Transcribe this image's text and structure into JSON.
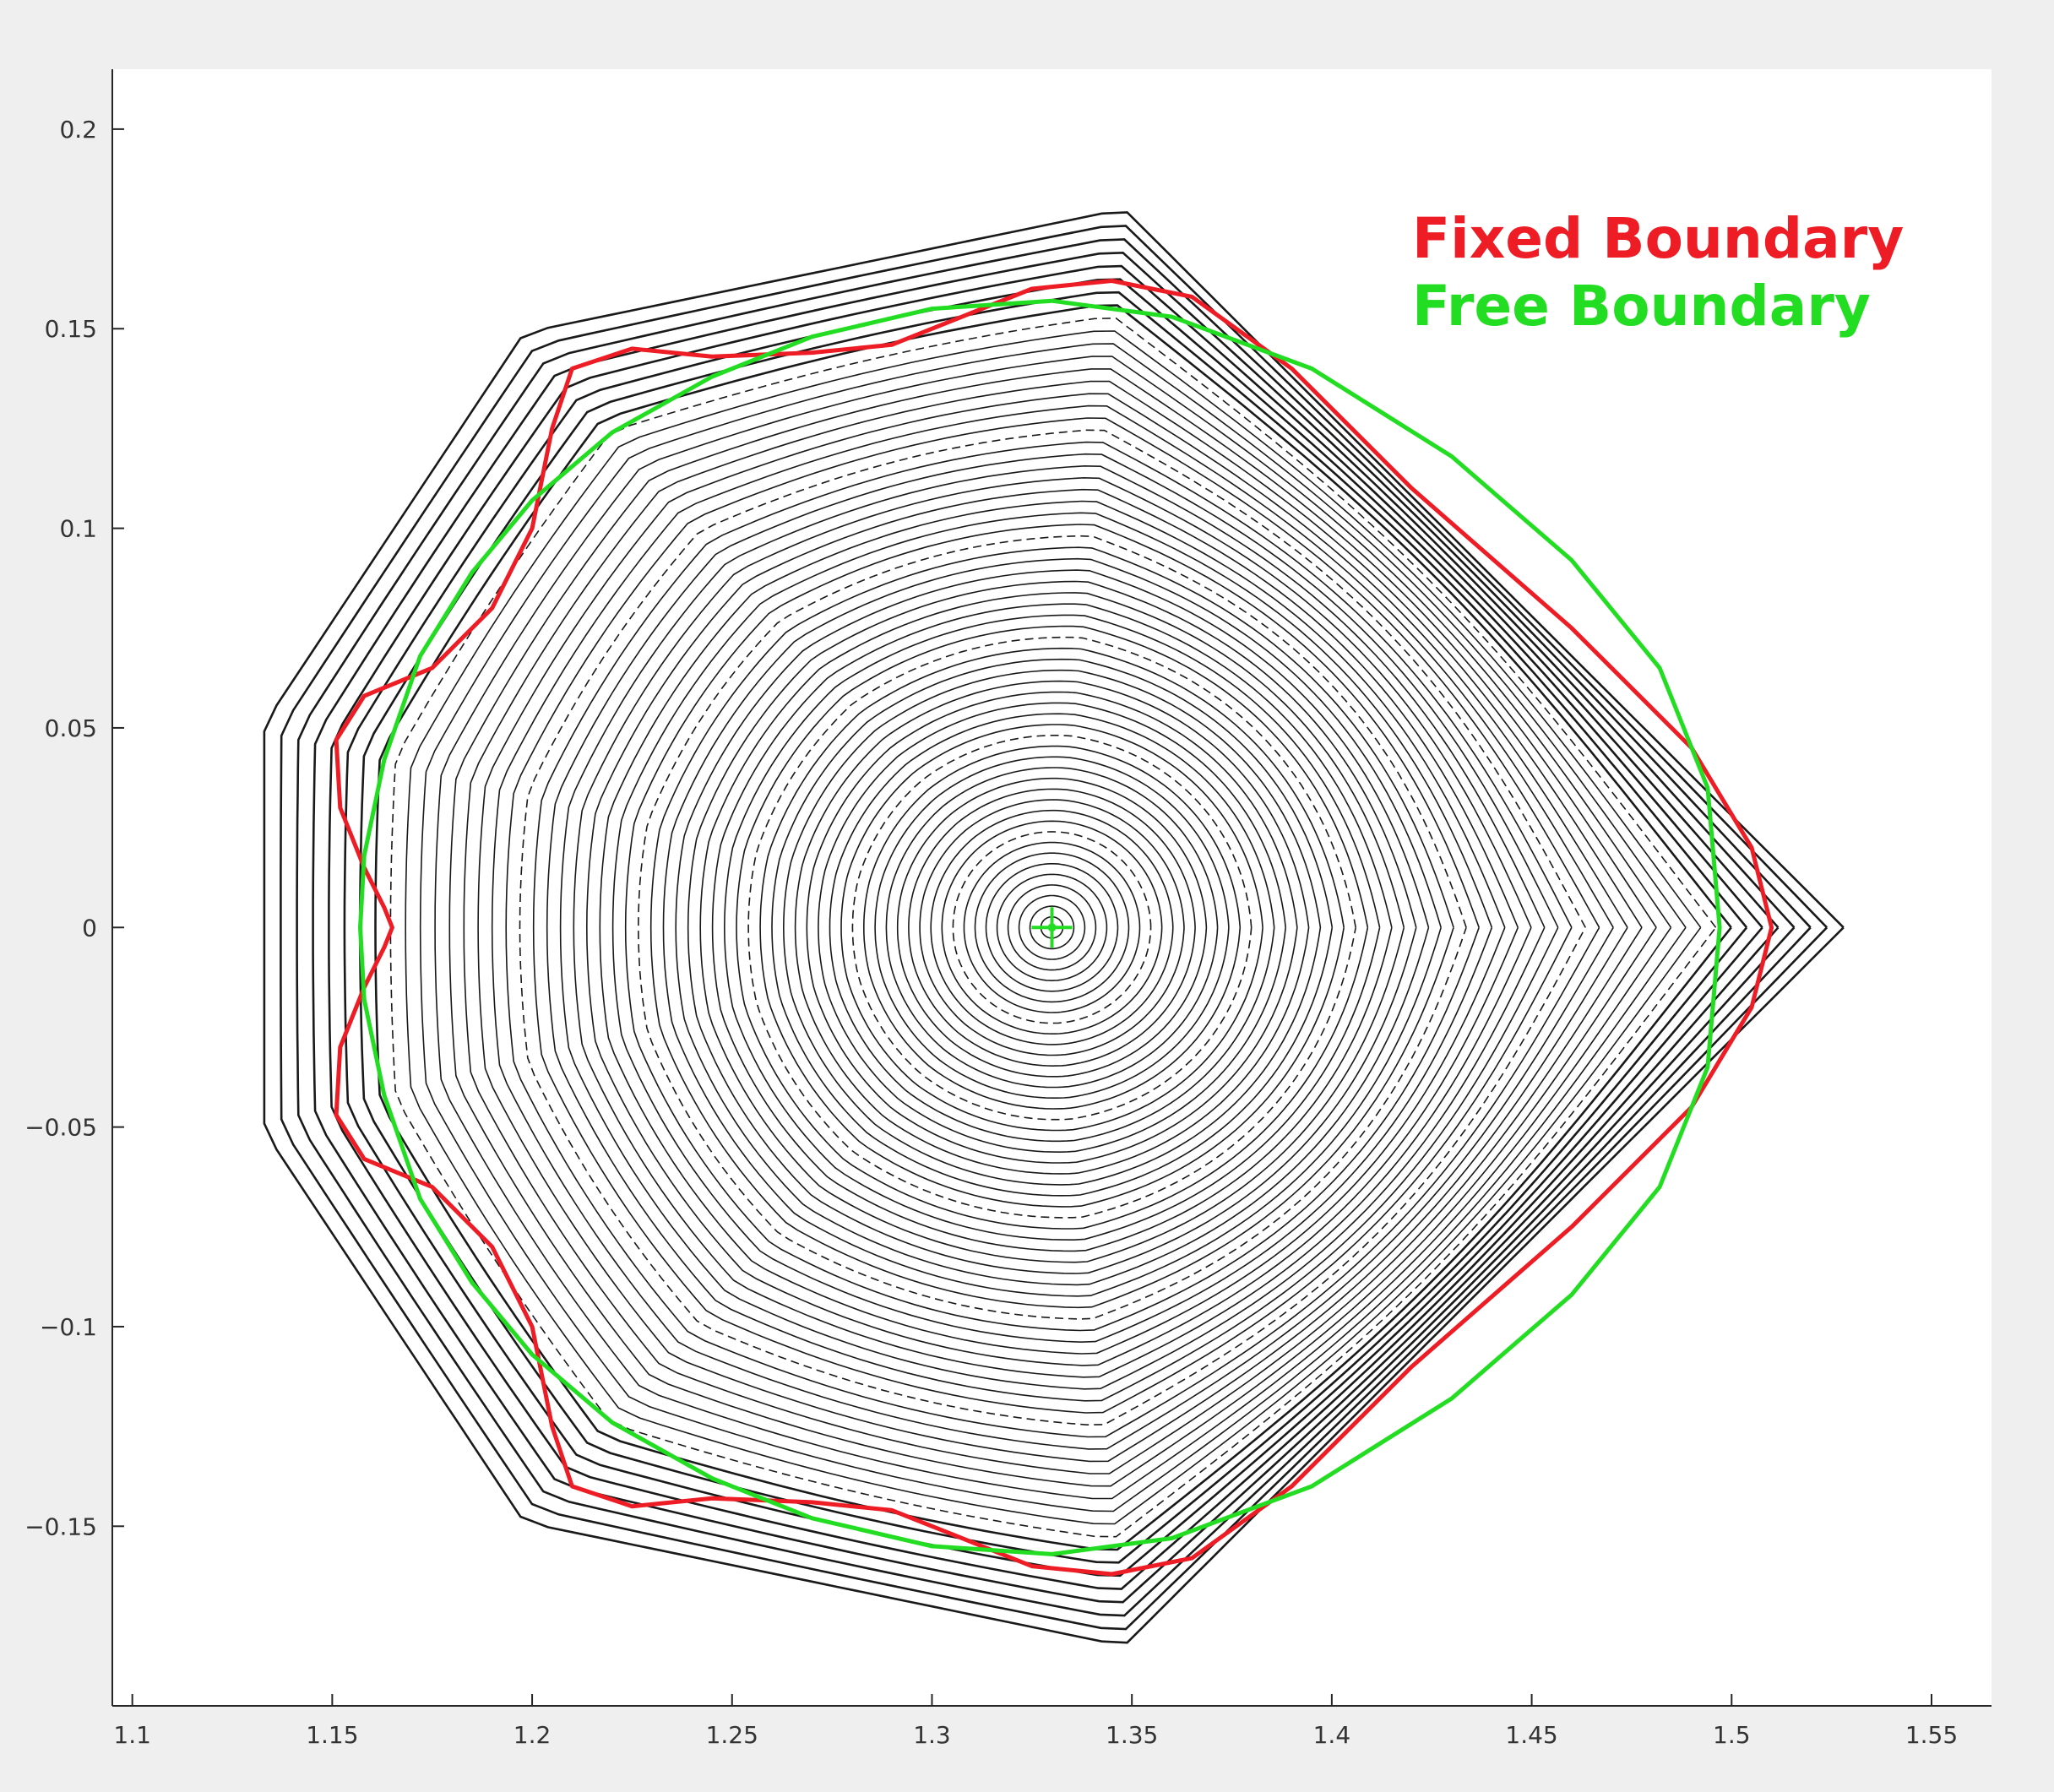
{
  "chart_data": {
    "type": "scatter",
    "title": "",
    "xlabel": "",
    "ylabel": "",
    "xlim": [
      1.095,
      1.565
    ],
    "ylim": [
      -0.195,
      0.215
    ],
    "xticks": [
      1.1,
      1.15,
      1.2,
      1.25,
      1.3,
      1.35,
      1.4,
      1.45,
      1.5,
      1.55
    ],
    "xtick_labels": [
      "1.1",
      "1.15",
      "1.2",
      "1.25",
      "1.3",
      "1.35",
      "1.4",
      "1.45",
      "1.5",
      "1.55"
    ],
    "yticks": [
      0.2,
      0.15,
      0.1,
      0.05,
      0,
      -0.05,
      -0.1,
      -0.15
    ],
    "ytick_labels": [
      "0.2",
      "0.15",
      "0.1",
      "0.05",
      "0",
      "−0.05",
      "−0.1",
      "−0.15"
    ],
    "grid": false,
    "legend_position": "top-right",
    "axis_center": {
      "x": 1.33,
      "y": 0.0
    },
    "poincare_surfaces": {
      "color": "#000000",
      "count": 62,
      "outer_vertices": [
        [
          1.528,
          0.0
        ],
        [
          1.348,
          0.18
        ],
        [
          1.198,
          0.149
        ],
        [
          1.133,
          0.051
        ],
        [
          1.133,
          -0.051
        ],
        [
          1.198,
          -0.149
        ],
        [
          1.348,
          -0.18
        ]
      ]
    },
    "series": [
      {
        "name": "Fixed Boundary",
        "color": "#ee1c25",
        "x": [
          1.51,
          1.505,
          1.49,
          1.46,
          1.42,
          1.39,
          1.365,
          1.345,
          1.325,
          1.305,
          1.29,
          1.27,
          1.245,
          1.225,
          1.21,
          1.205,
          1.2,
          1.19,
          1.175,
          1.158,
          1.151,
          1.152,
          1.158,
          1.163,
          1.165,
          1.163,
          1.158,
          1.152,
          1.151,
          1.158,
          1.175,
          1.19,
          1.2,
          1.205,
          1.21,
          1.225,
          1.245,
          1.27,
          1.29,
          1.305,
          1.325,
          1.345,
          1.365,
          1.39,
          1.42,
          1.46,
          1.49,
          1.505,
          1.51
        ],
        "y": [
          0.0,
          0.02,
          0.045,
          0.075,
          0.11,
          0.14,
          0.158,
          0.162,
          0.16,
          0.152,
          0.146,
          0.144,
          0.143,
          0.145,
          0.14,
          0.125,
          0.1,
          0.08,
          0.065,
          0.058,
          0.047,
          0.03,
          0.015,
          0.005,
          0.0,
          -0.005,
          -0.015,
          -0.03,
          -0.047,
          -0.058,
          -0.065,
          -0.08,
          -0.1,
          -0.125,
          -0.14,
          -0.145,
          -0.143,
          -0.144,
          -0.146,
          -0.152,
          -0.16,
          -0.162,
          -0.158,
          -0.14,
          -0.11,
          -0.075,
          -0.045,
          -0.02,
          0.0
        ]
      },
      {
        "name": "Free Boundary",
        "color": "#22dd22",
        "x": [
          1.497,
          1.494,
          1.482,
          1.46,
          1.43,
          1.395,
          1.36,
          1.33,
          1.3,
          1.27,
          1.245,
          1.22,
          1.2,
          1.185,
          1.172,
          1.163,
          1.158,
          1.157,
          1.158,
          1.163,
          1.172,
          1.185,
          1.2,
          1.22,
          1.245,
          1.27,
          1.3,
          1.33,
          1.36,
          1.395,
          1.43,
          1.46,
          1.482,
          1.494,
          1.497
        ],
        "y": [
          0.0,
          0.035,
          0.065,
          0.092,
          0.118,
          0.14,
          0.153,
          0.157,
          0.155,
          0.148,
          0.138,
          0.124,
          0.107,
          0.089,
          0.068,
          0.042,
          0.018,
          0.0,
          -0.018,
          -0.042,
          -0.068,
          -0.089,
          -0.107,
          -0.124,
          -0.138,
          -0.148,
          -0.155,
          -0.157,
          -0.153,
          -0.14,
          -0.118,
          -0.092,
          -0.065,
          -0.035,
          0.0
        ]
      }
    ]
  }
}
